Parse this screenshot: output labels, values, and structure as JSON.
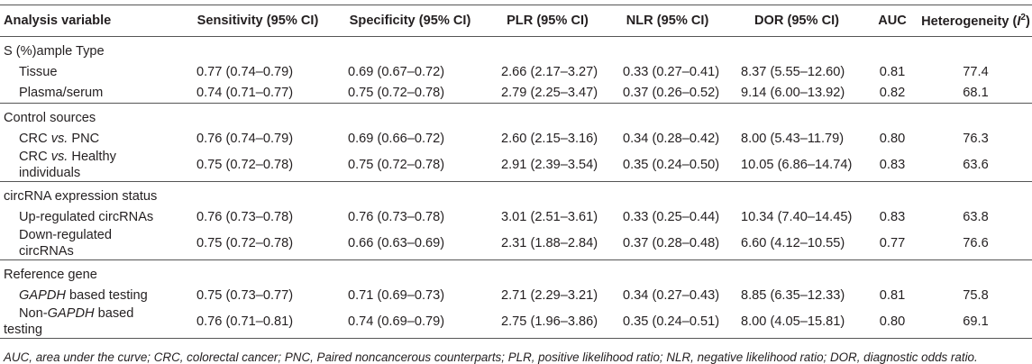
{
  "headers": [
    "Analysis variable",
    "Sensitivity (95% CI)",
    "Specificity (95% CI)",
    "PLR (95% CI)",
    "NLR (95% CI)",
    "DOR (95% CI)",
    "AUC",
    "Heterogeneity (I2)"
  ],
  "header_last_prefix": "Heterogeneity (",
  "header_last_italic": "I",
  "header_last_sup": "2",
  "header_last_suffix": ")",
  "groups": [
    {
      "label": "S (%)ample Type"
    },
    {
      "label": "Control sources"
    },
    {
      "label": "circRNA expression status"
    },
    {
      "label": "Reference gene"
    }
  ],
  "rows": {
    "tissue": {
      "label": "Tissue",
      "sens": "0.77 (0.74–0.79)",
      "spec": "0.69 (0.67–0.72)",
      "plr": "2.66 (2.17–3.27)",
      "nlr": "0.33 (0.27–0.41)",
      "dor": "8.37 (5.55–12.60)",
      "auc": "0.81",
      "het": "77.4"
    },
    "plasma": {
      "label": "Plasma/serum",
      "sens": "0.74 (0.71–0.77)",
      "spec": "0.75 (0.72–0.78)",
      "plr": "2.79 (2.25–3.47)",
      "nlr": "0.37 (0.26–0.52)",
      "dor": "9.14 (6.00–13.92)",
      "auc": "0.82",
      "het": "68.1"
    },
    "pnc": {
      "label_pre": "CRC ",
      "label_it": "vs.",
      "label_post": " PNC",
      "sens": "0.76 (0.74–0.79)",
      "spec": "0.69 (0.66–0.72)",
      "plr": "2.60 (2.15–3.16)",
      "nlr": "0.34 (0.28–0.42)",
      "dor": "8.00 (5.43–11.79)",
      "auc": "0.80",
      "het": "76.3"
    },
    "healthy": {
      "label_pre": "CRC ",
      "label_it": "vs.",
      "label_post": " Healthy",
      "label_line2": "individuals",
      "sens": "0.75 (0.72–0.78)",
      "spec": "0.75 (0.72–0.78)",
      "plr": "2.91 (2.39–3.54)",
      "nlr": "0.35 (0.24–0.50)",
      "dor": "10.05 (6.86–14.74)",
      "auc": "0.83",
      "het": "63.6"
    },
    "up": {
      "label": "Up-regulated circRNAs",
      "sens": "0.76 (0.73–0.78)",
      "spec": "0.76 (0.73–0.78)",
      "plr": "3.01 (2.51–3.61)",
      "nlr": "0.33 (0.25–0.44)",
      "dor": "10.34 (7.40–14.45)",
      "auc": "0.83",
      "het": "63.8"
    },
    "down": {
      "label": "Down-regulated",
      "label_line2": "circRNAs",
      "sens": "0.75 (0.72–0.78)",
      "spec": "0.66 (0.63–0.69)",
      "plr": "2.31 (1.88–2.84)",
      "nlr": "0.37 (0.28–0.48)",
      "dor": "6.60 (4.12–10.55)",
      "auc": "0.77",
      "het": "76.6"
    },
    "gapdh": {
      "label_it": "GAPDH",
      "label_post": " based testing",
      "sens": "0.75 (0.73–0.77)",
      "spec": "0.71 (0.69–0.73)",
      "plr": "2.71 (2.29–3.21)",
      "nlr": "0.34 (0.27–0.43)",
      "dor": "8.85 (6.35–12.33)",
      "auc": "0.81",
      "het": "75.8"
    },
    "nongapdh": {
      "label_pre": "Non-",
      "label_it": "GAPDH",
      "label_post": " based",
      "label_line2": "testing",
      "sens": "0.76 (0.71–0.81)",
      "spec": "0.74 (0.69–0.79)",
      "plr": "2.75 (1.96–3.86)",
      "nlr": "0.35 (0.24–0.51)",
      "dor": "8.00 (4.05–15.81)",
      "auc": "0.80",
      "het": "69.1"
    }
  },
  "footnote": "AUC, area under the curve; CRC, colorectal cancer; PNC, Paired noncancerous counterparts; PLR, positive likelihood ratio; NLR, negative likelihood ratio; DOR, diagnostic odds ratio."
}
